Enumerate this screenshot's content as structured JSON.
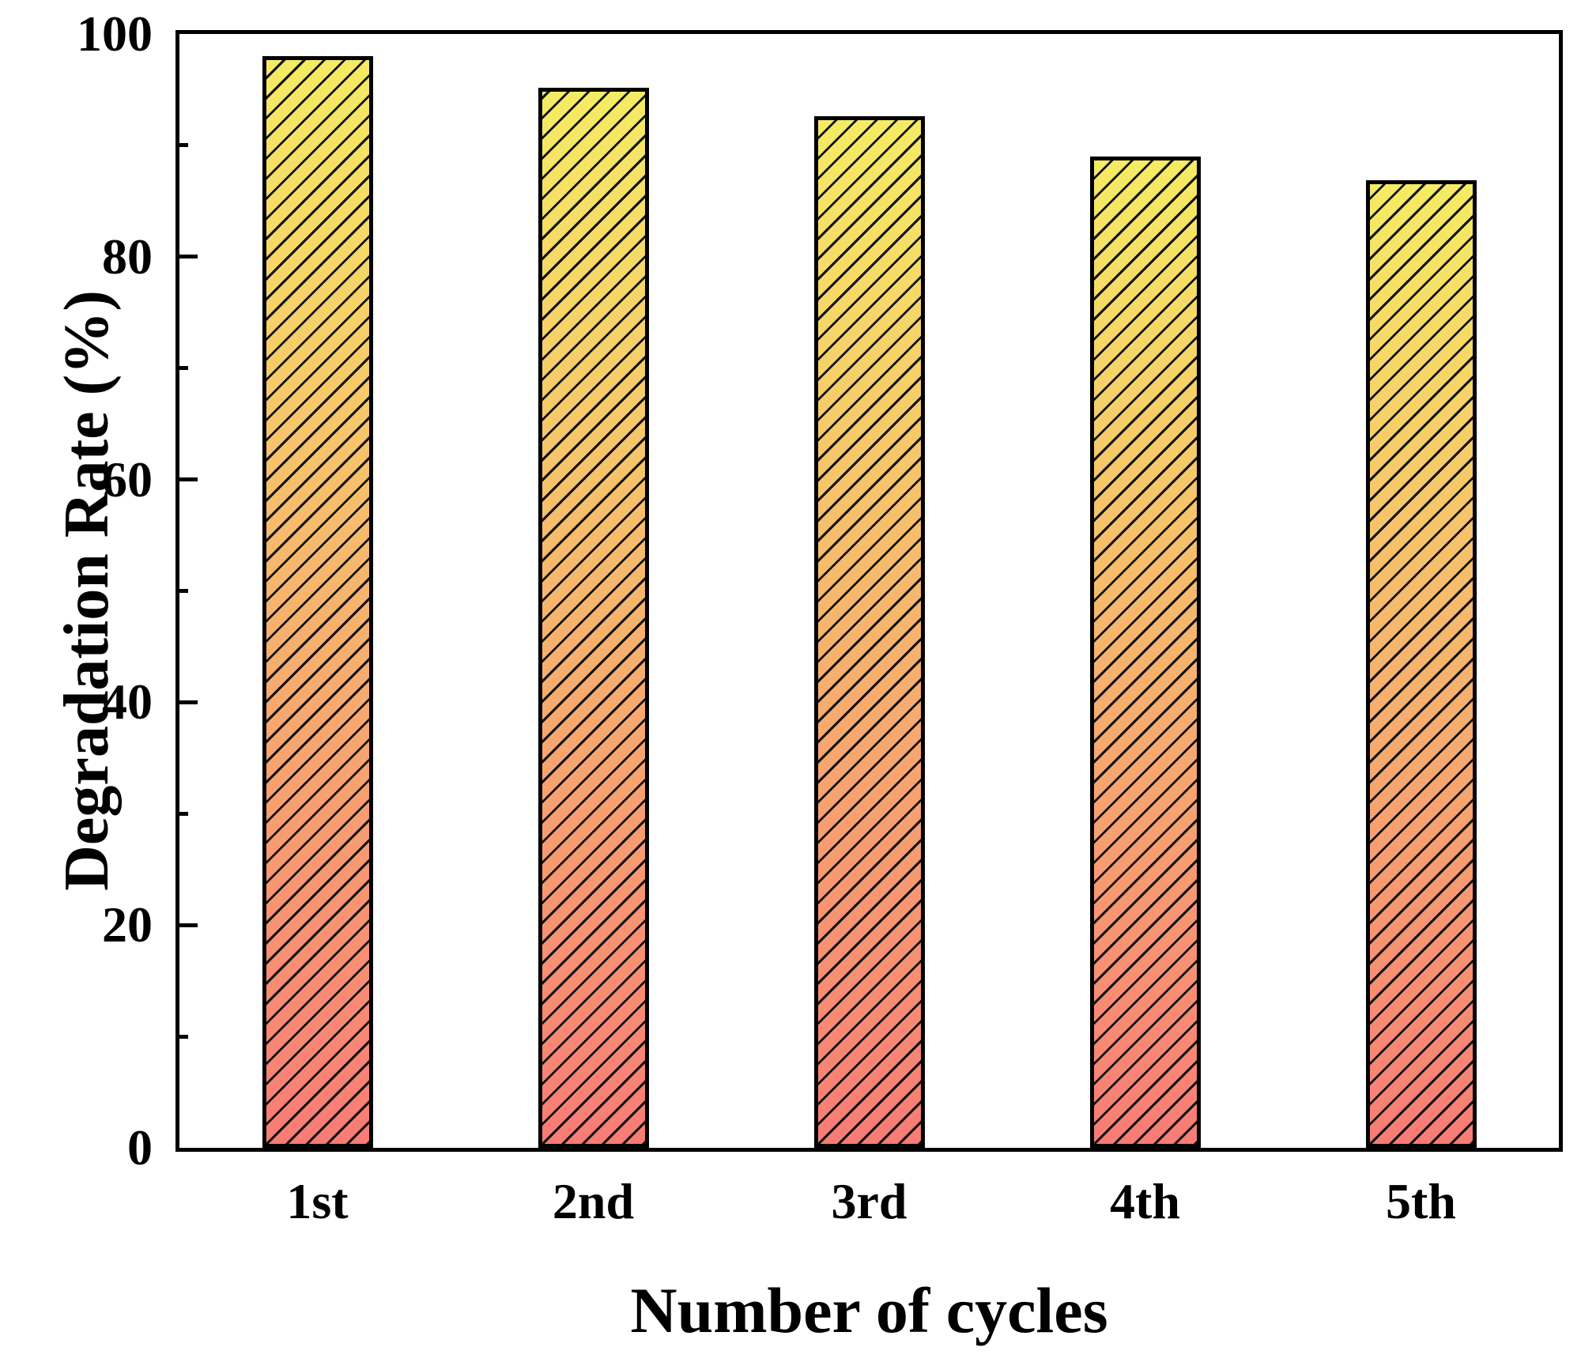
{
  "chart_data": {
    "type": "bar",
    "title": "",
    "xlabel": "Number of cycles",
    "ylabel": "Degradation Rate (%)",
    "categories": [
      "1st",
      "2nd",
      "3rd",
      "4th",
      "5th"
    ],
    "values": [
      98.0,
      95.2,
      92.6,
      89.0,
      86.9
    ],
    "ylim": [
      0,
      100
    ],
    "yticks_major": [
      0,
      20,
      40,
      60,
      80,
      100
    ],
    "yticks_minor": [
      10,
      30,
      50,
      70,
      90
    ],
    "grid": false,
    "legend": "none",
    "axis_color": "#000000",
    "background_color": "#ffffff",
    "bar_style": {
      "fill": "vertical-gradient",
      "gradient_top": "#F5EB64",
      "gradient_bottom": "#F87C75",
      "hatch": "forward-diagonal-lines",
      "hatch_color": "#131313",
      "border_color": "#000000"
    }
  }
}
